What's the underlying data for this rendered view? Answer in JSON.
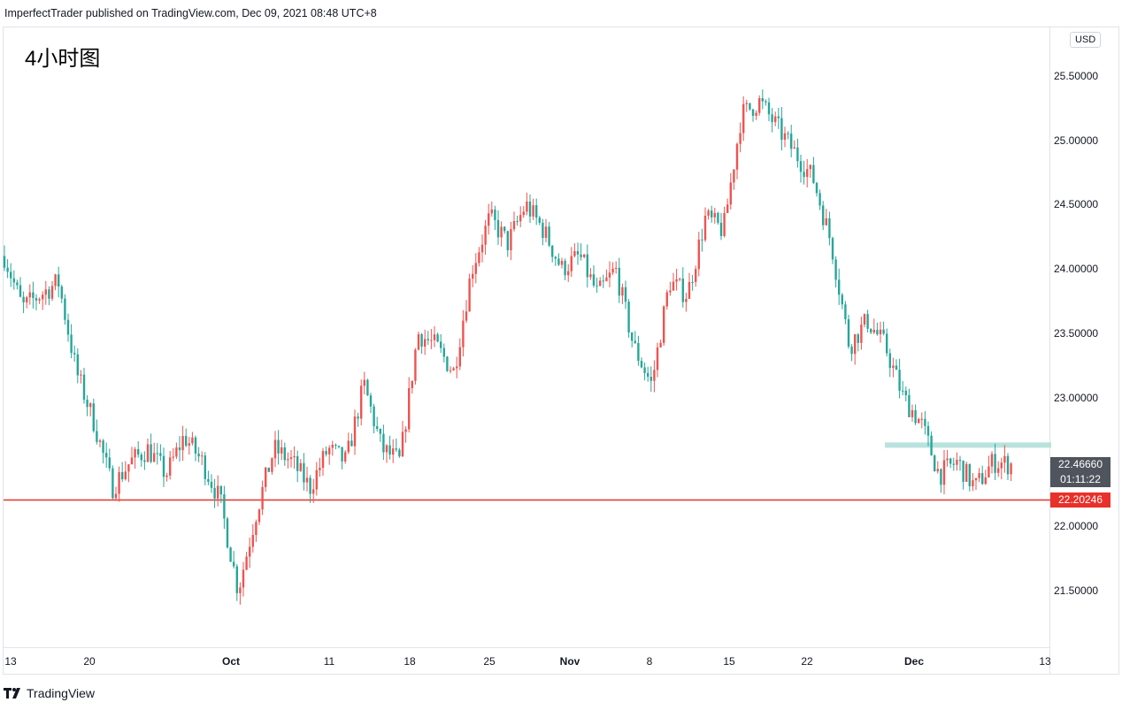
{
  "header": {
    "text": "ImperfectTrader published on TradingView.com, Dec 09, 2021 08:48 UTC+8"
  },
  "chart_title": "4小时图",
  "currency": "USD",
  "brand": {
    "logo_icon": "tradingview-logo-icon",
    "text": "TradingView"
  },
  "colors": {
    "up": "#ef5350",
    "down": "#26a69a",
    "level_line": "#e8312a",
    "resistance_zone": "#b8e3dd",
    "current_box": "#4f545d"
  },
  "chart_data": {
    "type": "candlestick",
    "y_range": [
      21.0,
      25.8
    ],
    "price_ticks": [
      "25.50000",
      "25.00000",
      "24.50000",
      "24.00000",
      "23.50000",
      "23.00000",
      "22.50000",
      "22.00000",
      "21.50000"
    ],
    "time_ticks": [
      {
        "label": "13",
        "major": false
      },
      {
        "label": "20",
        "major": false
      },
      {
        "label": "Oct",
        "major": true
      },
      {
        "label": "11",
        "major": false
      },
      {
        "label": "18",
        "major": false
      },
      {
        "label": "25",
        "major": false
      },
      {
        "label": "Nov",
        "major": true
      },
      {
        "label": "8",
        "major": false
      },
      {
        "label": "15",
        "major": false
      },
      {
        "label": "22",
        "major": false
      },
      {
        "label": "Dec",
        "major": true
      },
      {
        "label": "13",
        "major": false
      }
    ],
    "anchor_prices": [
      24.1,
      23.7,
      23.8,
      23.9,
      23.2,
      22.8,
      22.3,
      22.5,
      22.6,
      22.4,
      22.7,
      22.5,
      22.2,
      21.5,
      22.1,
      22.6,
      22.5,
      22.3,
      22.6,
      22.5,
      23.1,
      22.6,
      22.5,
      23.5,
      23.4,
      23.2,
      24.0,
      24.4,
      24.2,
      24.5,
      24.3,
      24.0,
      24.1,
      23.8,
      24.0,
      23.4,
      23.1,
      23.9,
      23.8,
      24.4,
      24.3,
      25.2,
      25.3,
      25.1,
      24.9,
      24.7,
      24.2,
      23.4,
      23.6,
      23.4,
      23.0,
      22.8,
      22.4,
      22.5,
      22.3,
      22.5,
      22.48
    ],
    "current_price": "22.46660",
    "countdown": "01:11:22",
    "support_level": {
      "price": 22.20246,
      "label": "22.20246"
    },
    "resistance_zone": {
      "price": 22.63
    }
  }
}
